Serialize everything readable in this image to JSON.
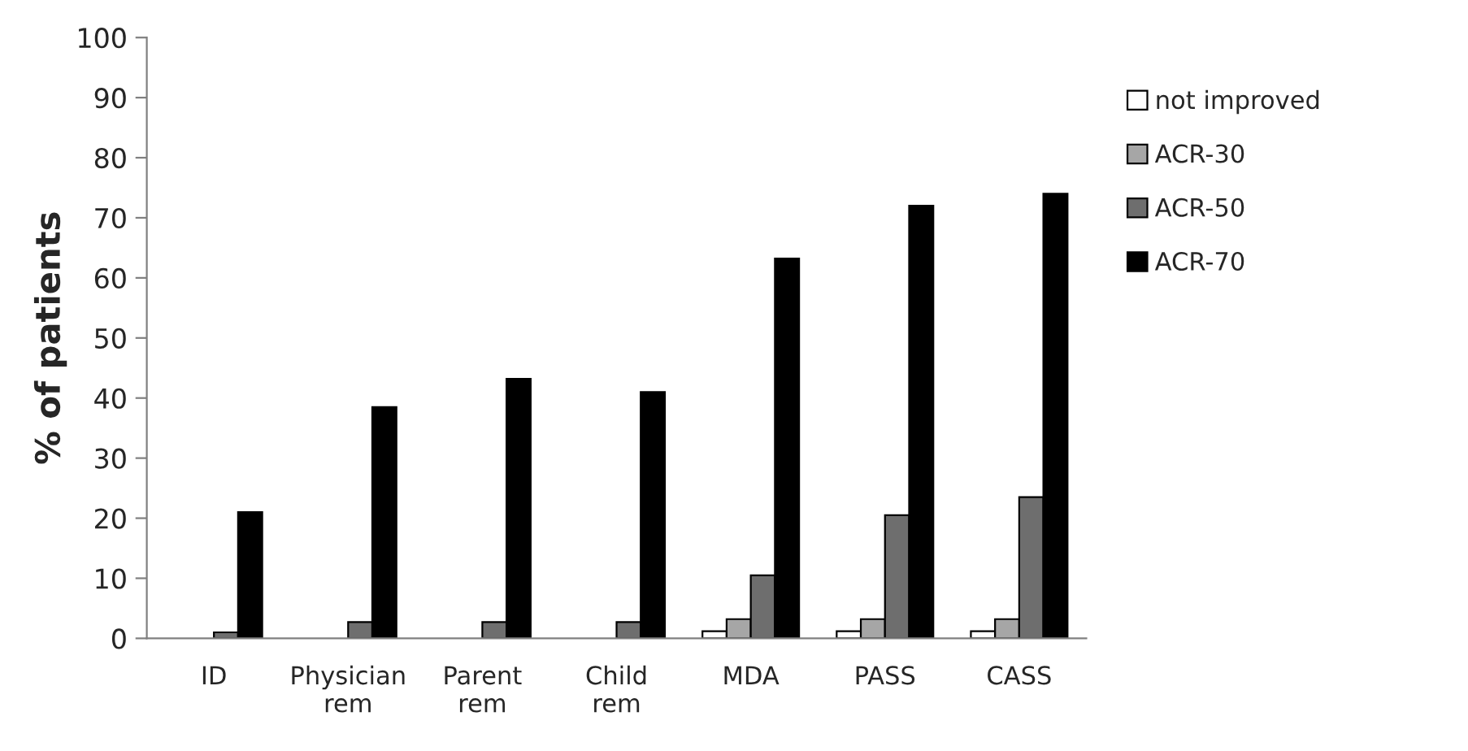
{
  "chart_data": {
    "type": "bar",
    "ylabel": "% of patients",
    "categories": [
      "ID",
      "Physician rem",
      "Parent rem",
      "Child rem",
      "MDA",
      "PASS",
      "CASS"
    ],
    "series": [
      {
        "name": "not improved",
        "color": "#ffffff",
        "values": [
          null,
          null,
          null,
          null,
          1.2,
          1.2,
          1.2
        ]
      },
      {
        "name": "ACR-30",
        "color": "#a6a6a6",
        "values": [
          null,
          null,
          null,
          null,
          3.2,
          3.2,
          3.2
        ]
      },
      {
        "name": "ACR-50",
        "color": "#6e6e6e",
        "values": [
          1,
          2.7,
          2.7,
          2.7,
          10.5,
          20.5,
          23.5
        ]
      },
      {
        "name": "ACR-70",
        "color": "#000000",
        "values": [
          21,
          38.5,
          43.2,
          41,
          63.2,
          72,
          74
        ]
      }
    ],
    "ylim": [
      0,
      100
    ],
    "yticks": [
      0,
      10,
      20,
      30,
      40,
      50,
      60,
      70,
      80,
      90,
      100
    ],
    "grid": false,
    "legend": "right"
  }
}
